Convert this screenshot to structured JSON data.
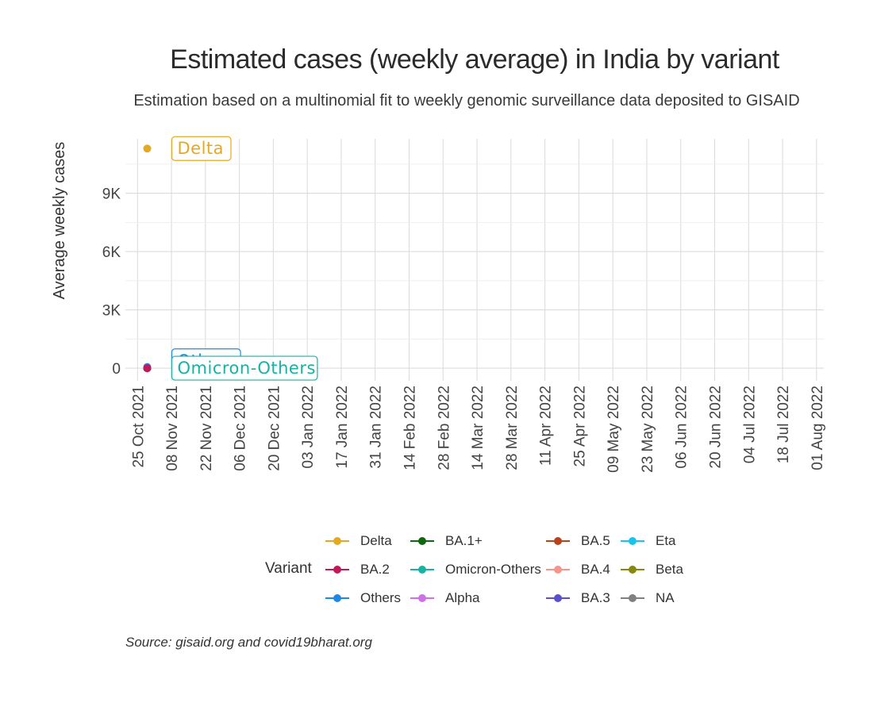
{
  "chart_data": {
    "type": "line",
    "title": "Estimated cases (weekly average) in India by variant",
    "subtitle": "Estimation based on a multinomial fit to weekly genomic surveillance data deposited to GISAID",
    "ylabel": "Average weekly cases",
    "xlabel": "",
    "caption": "Source: gisaid.org and covid19bharat.org",
    "x_ticks": [
      "25 Oct 2021",
      "08 Nov 2021",
      "22 Nov 2021",
      "06 Dec 2021",
      "20 Dec 2021",
      "03 Jan 2022",
      "17 Jan 2022",
      "31 Jan 2022",
      "14 Feb 2022",
      "28 Feb 2022",
      "14 Mar 2022",
      "28 Mar 2022",
      "11 Apr 2022",
      "25 Apr 2022",
      "09 May 2022",
      "23 May 2022",
      "06 Jun 2022",
      "20 Jun 2022",
      "04 Jul 2022",
      "18 Jul 2022",
      "01 Aug 2022"
    ],
    "y_ticks": [
      {
        "value": 0,
        "label": "0"
      },
      {
        "value": 3000,
        "label": "3K"
      },
      {
        "value": 6000,
        "label": "6K"
      },
      {
        "value": 9000,
        "label": "9K"
      }
    ],
    "ylim": [
      -650,
      11800
    ],
    "xlim": [
      "2021-10-20",
      "2022-08-04"
    ],
    "grid": true,
    "legend": {
      "title": "Variant",
      "position": "bottom"
    },
    "series": [
      {
        "name": "Delta",
        "color": "#E5A823",
        "points": [
          {
            "x": "2021-10-29",
            "y": 11300
          }
        ],
        "label": "Delta",
        "label_y": 11300
      },
      {
        "name": "BA.2",
        "color": "#C2185B",
        "points": [
          {
            "x": "2021-10-29",
            "y": 0
          }
        ]
      },
      {
        "name": "Others",
        "color": "#1E88E5",
        "points": [
          {
            "x": "2021-10-29",
            "y": 60
          }
        ]
      },
      {
        "name": "BA.1+",
        "color": "#116611",
        "points": [
          {
            "x": "2021-10-29",
            "y": 0
          }
        ]
      },
      {
        "name": "Omicron-Others",
        "color": "#16B3A3",
        "points": [
          {
            "x": "2021-10-29",
            "y": 20
          }
        ],
        "label": "Omicron-Others",
        "label_y": 0
      },
      {
        "name": "Alpha",
        "color": "#D070E8",
        "points": [
          {
            "x": "2021-10-29",
            "y": 0
          }
        ]
      },
      {
        "name": "BA.5",
        "color": "#B5441B",
        "points": [
          {
            "x": "2021-10-29",
            "y": 0
          }
        ]
      },
      {
        "name": "BA.4",
        "color": "#F7958A",
        "points": [
          {
            "x": "2021-10-29",
            "y": 0
          }
        ]
      },
      {
        "name": "BA.3",
        "color": "#5A4FCF",
        "points": [
          {
            "x": "2021-10-29",
            "y": 0
          }
        ]
      },
      {
        "name": "Eta",
        "color": "#19C3EE",
        "points": [
          {
            "x": "2021-10-29",
            "y": 0
          }
        ]
      },
      {
        "name": "Beta",
        "color": "#868A0B",
        "points": [
          {
            "x": "2021-10-29",
            "y": 0
          }
        ]
      },
      {
        "name": "NA",
        "color": "#808080",
        "points": [
          {
            "x": "2021-10-29",
            "y": 0
          }
        ]
      }
    ],
    "hidden_label": {
      "text": "Others",
      "color": "#1E88E5",
      "y": 380
    }
  }
}
